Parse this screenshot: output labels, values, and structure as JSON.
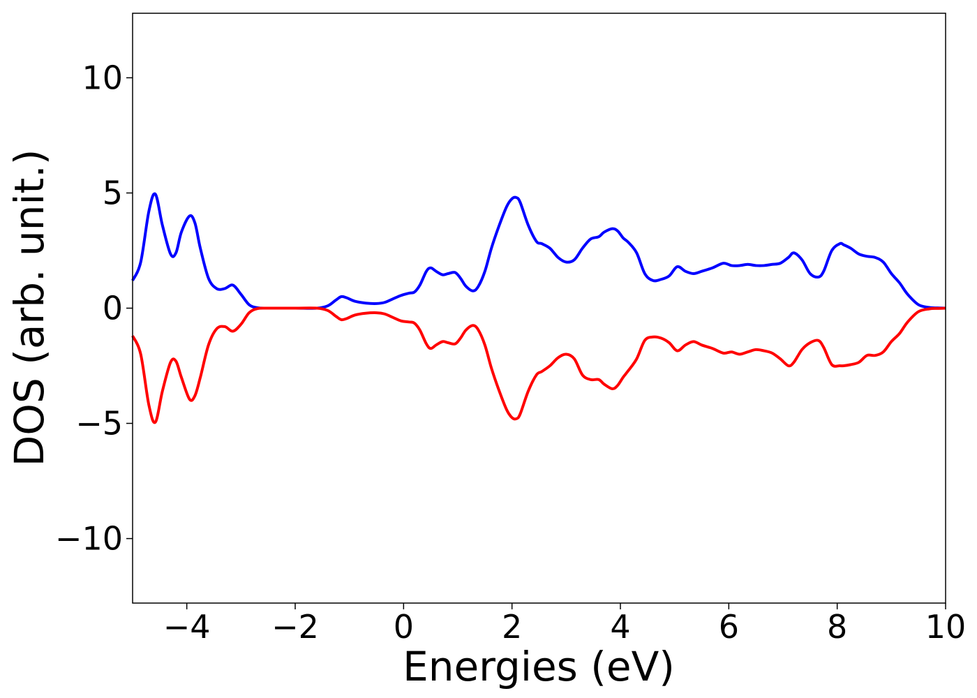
{
  "chart_data": {
    "type": "line",
    "xlabel": "Energies (eV)",
    "ylabel": "DOS (arb. unit.)",
    "xlim": [
      -5,
      10
    ],
    "ylim": [
      -12.8,
      12.8
    ],
    "x_ticks": [
      -4,
      -2,
      0,
      2,
      4,
      6,
      8,
      10
    ],
    "x_tick_labels": [
      "−4",
      "−2",
      "0",
      "2",
      "4",
      "6",
      "8",
      "10"
    ],
    "y_ticks": [
      -10,
      -5,
      0,
      5,
      10
    ],
    "y_tick_labels": [
      "−10",
      "−5",
      "0",
      "5",
      "10"
    ],
    "grid": false,
    "legend": "none",
    "series": [
      {
        "color": "#0000ff",
        "x": [
          -5.0,
          -4.85,
          -4.7,
          -4.58,
          -4.45,
          -4.3,
          -4.2,
          -4.1,
          -3.95,
          -3.85,
          -3.75,
          -3.6,
          -3.45,
          -3.3,
          -3.15,
          -3.0,
          -2.85,
          -2.7,
          -2.5,
          -2.0,
          -1.6,
          -1.4,
          -1.25,
          -1.15,
          -1.05,
          -0.9,
          -0.7,
          -0.5,
          -0.35,
          -0.2,
          -0.05,
          0.1,
          0.2,
          0.3,
          0.42,
          0.5,
          0.6,
          0.72,
          0.82,
          0.95,
          1.05,
          1.15,
          1.28,
          1.38,
          1.5,
          1.62,
          1.75,
          1.9,
          2.0,
          2.08,
          2.15,
          2.3,
          2.45,
          2.55,
          2.7,
          2.85,
          3.0,
          3.15,
          3.3,
          3.45,
          3.6,
          3.7,
          3.85,
          3.95,
          4.05,
          4.15,
          4.3,
          4.45,
          4.6,
          4.75,
          4.9,
          5.05,
          5.2,
          5.35,
          5.5,
          5.7,
          5.9,
          6.05,
          6.2,
          6.35,
          6.5,
          6.65,
          6.8,
          6.95,
          7.1,
          7.2,
          7.35,
          7.5,
          7.65,
          7.75,
          7.9,
          8.05,
          8.12,
          8.25,
          8.4,
          8.55,
          8.7,
          8.85,
          9.0,
          9.15,
          9.3,
          9.5,
          9.7,
          9.85,
          10.0
        ],
        "y": [
          1.2,
          2.0,
          4.2,
          4.95,
          3.6,
          2.35,
          2.4,
          3.3,
          4.0,
          3.7,
          2.6,
          1.3,
          0.85,
          0.85,
          1.0,
          0.6,
          0.15,
          0.02,
          0.0,
          0.0,
          0.0,
          0.1,
          0.35,
          0.5,
          0.45,
          0.3,
          0.22,
          0.2,
          0.25,
          0.4,
          0.55,
          0.65,
          0.7,
          1.0,
          1.6,
          1.75,
          1.6,
          1.45,
          1.5,
          1.55,
          1.3,
          0.95,
          0.75,
          0.95,
          1.6,
          2.6,
          3.5,
          4.4,
          4.75,
          4.8,
          4.6,
          3.6,
          2.9,
          2.8,
          2.6,
          2.2,
          2.0,
          2.1,
          2.6,
          3.0,
          3.1,
          3.3,
          3.45,
          3.35,
          3.05,
          2.85,
          2.4,
          1.5,
          1.2,
          1.25,
          1.4,
          1.8,
          1.6,
          1.5,
          1.6,
          1.75,
          1.95,
          1.85,
          1.85,
          1.9,
          1.85,
          1.85,
          1.9,
          1.95,
          2.2,
          2.4,
          2.1,
          1.5,
          1.35,
          1.6,
          2.5,
          2.8,
          2.75,
          2.6,
          2.35,
          2.25,
          2.2,
          2.0,
          1.5,
          1.1,
          0.6,
          0.15,
          0.03,
          0.01,
          0.0
        ]
      },
      {
        "color": "#ff0000",
        "x": [
          -5.0,
          -4.85,
          -4.7,
          -4.58,
          -4.45,
          -4.3,
          -4.2,
          -4.1,
          -3.95,
          -3.85,
          -3.75,
          -3.6,
          -3.45,
          -3.3,
          -3.15,
          -3.0,
          -2.85,
          -2.7,
          -2.5,
          -2.0,
          -1.6,
          -1.4,
          -1.25,
          -1.15,
          -1.05,
          -0.9,
          -0.7,
          -0.5,
          -0.35,
          -0.2,
          -0.05,
          0.1,
          0.2,
          0.3,
          0.42,
          0.5,
          0.6,
          0.72,
          0.82,
          0.95,
          1.05,
          1.15,
          1.28,
          1.38,
          1.5,
          1.62,
          1.75,
          1.9,
          2.0,
          2.08,
          2.15,
          2.3,
          2.45,
          2.55,
          2.7,
          2.85,
          3.0,
          3.15,
          3.3,
          3.45,
          3.6,
          3.7,
          3.85,
          3.95,
          4.05,
          4.15,
          4.3,
          4.45,
          4.6,
          4.75,
          4.9,
          5.05,
          5.2,
          5.35,
          5.5,
          5.7,
          5.9,
          6.05,
          6.2,
          6.35,
          6.5,
          6.65,
          6.8,
          6.95,
          7.1,
          7.2,
          7.35,
          7.5,
          7.65,
          7.75,
          7.9,
          8.05,
          8.12,
          8.25,
          8.4,
          8.55,
          8.7,
          8.85,
          9.0,
          9.15,
          9.3,
          9.5,
          9.7,
          9.85,
          10.0
        ],
        "y": [
          -1.2,
          -2.0,
          -4.2,
          -4.95,
          -3.6,
          -2.35,
          -2.3,
          -3.0,
          -3.95,
          -3.8,
          -3.0,
          -1.6,
          -0.9,
          -0.8,
          -1.0,
          -0.7,
          -0.2,
          -0.02,
          0.0,
          0.0,
          0.0,
          -0.1,
          -0.35,
          -0.5,
          -0.45,
          -0.3,
          -0.22,
          -0.2,
          -0.25,
          -0.4,
          -0.55,
          -0.6,
          -0.65,
          -0.95,
          -1.55,
          -1.75,
          -1.6,
          -1.45,
          -1.5,
          -1.55,
          -1.3,
          -0.95,
          -0.75,
          -0.95,
          -1.6,
          -2.6,
          -3.5,
          -4.4,
          -4.75,
          -4.8,
          -4.6,
          -3.6,
          -2.9,
          -2.75,
          -2.5,
          -2.15,
          -2.0,
          -2.2,
          -2.9,
          -3.1,
          -3.1,
          -3.3,
          -3.5,
          -3.35,
          -3.0,
          -2.7,
          -2.2,
          -1.4,
          -1.25,
          -1.3,
          -1.5,
          -1.85,
          -1.6,
          -1.45,
          -1.6,
          -1.75,
          -1.95,
          -1.9,
          -2.0,
          -1.9,
          -1.8,
          -1.85,
          -1.95,
          -2.2,
          -2.5,
          -2.35,
          -1.8,
          -1.5,
          -1.4,
          -1.7,
          -2.45,
          -2.5,
          -2.5,
          -2.45,
          -2.35,
          -2.05,
          -2.05,
          -1.9,
          -1.45,
          -1.1,
          -0.6,
          -0.15,
          -0.03,
          -0.01,
          0.0
        ]
      }
    ]
  }
}
